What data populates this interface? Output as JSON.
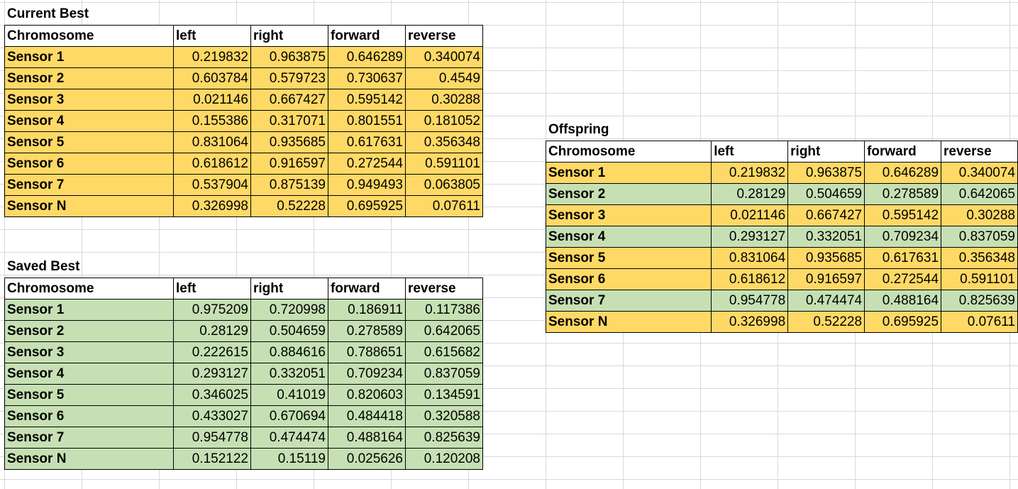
{
  "tables": [
    {
      "title": "Current Best",
      "columns": [
        "Chromosome",
        "left",
        "right",
        "forward",
        "reverse"
      ],
      "rows": [
        {
          "name": "Sensor 1",
          "color": "orange",
          "values": [
            "0.219832",
            "0.963875",
            "0.646289",
            "0.340074"
          ]
        },
        {
          "name": "Sensor 2",
          "color": "orange",
          "values": [
            "0.603784",
            "0.579723",
            "0.730637",
            "0.4549"
          ]
        },
        {
          "name": "Sensor 3",
          "color": "orange",
          "values": [
            "0.021146",
            "0.667427",
            "0.595142",
            "0.30288"
          ]
        },
        {
          "name": "Sensor 4",
          "color": "orange",
          "values": [
            "0.155386",
            "0.317071",
            "0.801551",
            "0.181052"
          ]
        },
        {
          "name": "Sensor 5",
          "color": "orange",
          "values": [
            "0.831064",
            "0.935685",
            "0.617631",
            "0.356348"
          ]
        },
        {
          "name": "Sensor 6",
          "color": "orange",
          "values": [
            "0.618612",
            "0.916597",
            "0.272544",
            "0.591101"
          ]
        },
        {
          "name": "Sensor 7",
          "color": "orange",
          "values": [
            "0.537904",
            "0.875139",
            "0.949493",
            "0.063805"
          ]
        },
        {
          "name": "Sensor N",
          "color": "orange",
          "values": [
            "0.326998",
            "0.52228",
            "0.695925",
            "0.07611"
          ]
        }
      ]
    },
    {
      "title": "Saved Best",
      "columns": [
        "Chromosome",
        "left",
        "right",
        "forward",
        "reverse"
      ],
      "rows": [
        {
          "name": "Sensor 1",
          "color": "green",
          "values": [
            "0.975209",
            "0.720998",
            "0.186911",
            "0.117386"
          ]
        },
        {
          "name": "Sensor 2",
          "color": "green",
          "values": [
            "0.28129",
            "0.504659",
            "0.278589",
            "0.642065"
          ]
        },
        {
          "name": "Sensor 3",
          "color": "green",
          "values": [
            "0.222615",
            "0.884616",
            "0.788651",
            "0.615682"
          ]
        },
        {
          "name": "Sensor 4",
          "color": "green",
          "values": [
            "0.293127",
            "0.332051",
            "0.709234",
            "0.837059"
          ]
        },
        {
          "name": "Sensor 5",
          "color": "green",
          "values": [
            "0.346025",
            "0.41019",
            "0.820603",
            "0.134591"
          ]
        },
        {
          "name": "Sensor 6",
          "color": "green",
          "values": [
            "0.433027",
            "0.670694",
            "0.484418",
            "0.320588"
          ]
        },
        {
          "name": "Sensor 7",
          "color": "green",
          "values": [
            "0.954778",
            "0.474474",
            "0.488164",
            "0.825639"
          ]
        },
        {
          "name": "Sensor N",
          "color": "green",
          "values": [
            "0.152122",
            "0.15119",
            "0.025626",
            "0.120208"
          ]
        }
      ]
    },
    {
      "title": "Offspring",
      "columns": [
        "Chromosome",
        "left",
        "right",
        "forward",
        "reverse"
      ],
      "rows": [
        {
          "name": "Sensor 1",
          "color": "orange",
          "values": [
            "0.219832",
            "0.963875",
            "0.646289",
            "0.340074"
          ]
        },
        {
          "name": "Sensor 2",
          "color": "green",
          "values": [
            "0.28129",
            "0.504659",
            "0.278589",
            "0.642065"
          ]
        },
        {
          "name": "Sensor 3",
          "color": "orange",
          "values": [
            "0.021146",
            "0.667427",
            "0.595142",
            "0.30288"
          ]
        },
        {
          "name": "Sensor 4",
          "color": "green",
          "values": [
            "0.293127",
            "0.332051",
            "0.709234",
            "0.837059"
          ]
        },
        {
          "name": "Sensor 5",
          "color": "orange",
          "values": [
            "0.831064",
            "0.935685",
            "0.617631",
            "0.356348"
          ]
        },
        {
          "name": "Sensor 6",
          "color": "orange",
          "values": [
            "0.618612",
            "0.916597",
            "0.272544",
            "0.591101"
          ]
        },
        {
          "name": "Sensor 7",
          "color": "green",
          "values": [
            "0.954778",
            "0.474474",
            "0.488164",
            "0.825639"
          ]
        },
        {
          "name": "Sensor N",
          "color": "orange",
          "values": [
            "0.326998",
            "0.52228",
            "0.695925",
            "0.07611"
          ]
        }
      ]
    }
  ],
  "colors": {
    "orange": "#ffd966",
    "green": "#c6e0b4"
  }
}
